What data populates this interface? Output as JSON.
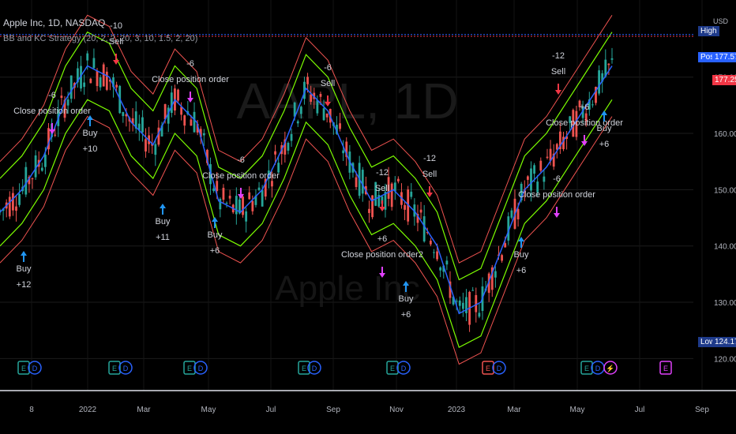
{
  "header": {
    "symbol_line": "Apple Inc, 1D, NASDAQ",
    "strategy_line": "BB and KC Strategy (20, 2, 2, 20, 3, 10, 1.5, 2, 20)"
  },
  "watermark": {
    "ticker": "AAPL, 1D",
    "name": "Apple Inc"
  },
  "price_axis": {
    "currency": "USD",
    "high_label": "High",
    "post_label": "Post",
    "post_value": "177.57",
    "last_value": "177.25",
    "low_label": "Low",
    "low_value": "124.17"
  },
  "colors": {
    "background": "#000000",
    "up_candle": "#26a69a",
    "down_candle": "#ef5350",
    "bb_band": "#ef5350",
    "kc_band": "#7cfc00",
    "basis": "#2962ff",
    "buy_arrow": "#2196f3",
    "sell_arrow": "#f23645",
    "close_arrow": "#e040fb",
    "last_price_line": "#f23645",
    "post_line": "#2962ff"
  },
  "chart_data": {
    "type": "candlestick",
    "title": "Apple Inc, 1D, NASDAQ",
    "x_tick_labels": [
      "8",
      "2022",
      "Mar",
      "May",
      "Jul",
      "Sep",
      "Nov",
      "2023",
      "Mar",
      "May",
      "Jul",
      "Sep"
    ],
    "y_tick_labels": [
      "120.00",
      "130.00",
      "140.00",
      "150.00",
      "160.00",
      "170.00"
    ],
    "ylim": [
      115,
      183
    ],
    "grid": true,
    "series": [
      {
        "name": "Basis",
        "values": [
          146,
          150,
          156,
          166,
          172,
          170,
          162,
          158,
          166,
          162,
          148,
          146,
          150,
          158,
          168,
          164,
          155,
          148,
          150,
          146,
          140,
          128,
          130,
          140,
          150,
          154,
          160,
          166,
          172
        ]
      }
    ],
    "events": [
      {
        "kind": "buy",
        "label": "Buy",
        "qty": "+12"
      },
      {
        "kind": "close",
        "label": "Close position order",
        "qty": "-6"
      },
      {
        "kind": "buy",
        "label": "Buy",
        "qty": "+10"
      },
      {
        "kind": "sell",
        "label": "Sell",
        "qty": "-10"
      },
      {
        "kind": "buy",
        "label": "Buy",
        "qty": "+11"
      },
      {
        "kind": "close",
        "label": "Close position order",
        "qty": "-6"
      },
      {
        "kind": "buy",
        "label": "Buy",
        "qty": "+6"
      },
      {
        "kind": "close",
        "label": "Close position order",
        "qty": "-6"
      },
      {
        "kind": "sell",
        "label": "Sell",
        "qty": "-6"
      },
      {
        "kind": "sell",
        "label": "Sell",
        "qty": "-12"
      },
      {
        "kind": "sell",
        "label": "Sell",
        "qty": "-12"
      },
      {
        "kind": "close",
        "label": "Close position order2",
        "qty": "+6"
      },
      {
        "kind": "buy",
        "label": "Buy",
        "qty": "+6"
      },
      {
        "kind": "buy",
        "label": "Buy",
        "qty": "+6"
      },
      {
        "kind": "close",
        "label": "Close position order",
        "qty": "-6"
      },
      {
        "kind": "sell",
        "label": "Sell",
        "qty": "-12"
      },
      {
        "kind": "close",
        "label": "Close position order",
        "qty": "+6"
      },
      {
        "kind": "buy",
        "label": "Buy",
        "qty": "+6"
      }
    ]
  }
}
